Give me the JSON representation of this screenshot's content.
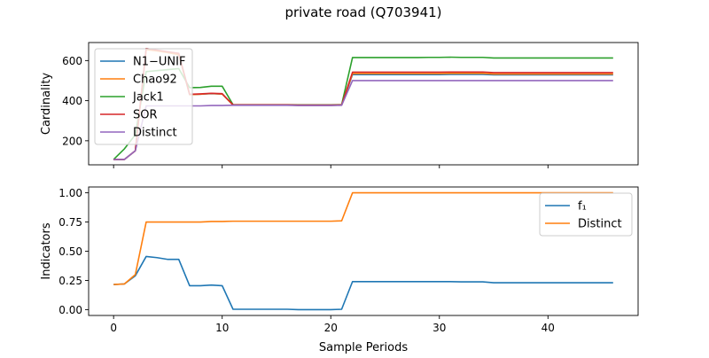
{
  "figure": {
    "title": "private road (Q703941)",
    "xlabel": "Sample Periods"
  },
  "chart_data": [
    {
      "type": "line",
      "ylabel": "Cardinality",
      "xlim": [
        -2.3,
        48.3
      ],
      "ylim": [
        80,
        690
      ],
      "xticks": [
        0,
        10,
        20,
        30,
        40
      ],
      "yticks": [
        200,
        400,
        600
      ],
      "legend_position": "upper-left",
      "grid": false,
      "series": [
        {
          "name": "N1−UNIF",
          "color": "#1f77b4",
          "x": [
            0,
            1,
            2,
            3,
            4,
            5,
            6,
            7,
            8,
            9,
            10,
            11,
            12,
            13,
            14,
            15,
            16,
            17,
            18,
            19,
            20,
            21,
            22,
            23,
            24,
            25,
            26,
            27,
            28,
            29,
            30,
            31,
            32,
            33,
            34,
            35,
            36,
            37,
            38,
            39,
            40,
            41,
            42,
            43,
            44,
            45,
            46
          ],
          "y": [
            107,
            107,
            150,
            660,
            650,
            640,
            630,
            430,
            432,
            435,
            433,
            378,
            378,
            378,
            378,
            378,
            378,
            377,
            377,
            377,
            377,
            378,
            530,
            530,
            530,
            530,
            530,
            530,
            530,
            530,
            530,
            531,
            531,
            531,
            531,
            529,
            529,
            529,
            529,
            529,
            529,
            529,
            529,
            529,
            529,
            529,
            529
          ]
        },
        {
          "name": "Chao92",
          "color": "#ff7f0e",
          "x": [
            0,
            1,
            2,
            3,
            4,
            5,
            6,
            7,
            8,
            9,
            10,
            11,
            12,
            13,
            14,
            15,
            16,
            17,
            18,
            19,
            20,
            21,
            22,
            23,
            24,
            25,
            26,
            27,
            28,
            29,
            30,
            31,
            32,
            33,
            34,
            35,
            36,
            37,
            38,
            39,
            40,
            41,
            42,
            43,
            44,
            45,
            46
          ],
          "y": [
            107,
            107,
            150,
            655,
            648,
            640,
            630,
            430,
            432,
            436,
            433,
            378,
            378,
            378,
            378,
            378,
            378,
            377,
            377,
            377,
            377,
            378,
            535,
            535,
            535,
            535,
            535,
            535,
            535,
            535,
            535,
            536,
            536,
            536,
            536,
            533,
            533,
            533,
            533,
            533,
            533,
            533,
            533,
            533,
            533,
            533,
            533
          ]
        },
        {
          "name": "Jack1",
          "color": "#2ca02c",
          "x": [
            0,
            1,
            2,
            3,
            4,
            5,
            6,
            7,
            8,
            9,
            10,
            11,
            12,
            13,
            14,
            15,
            16,
            17,
            18,
            19,
            20,
            21,
            22,
            23,
            24,
            25,
            26,
            27,
            28,
            29,
            30,
            31,
            32,
            33,
            34,
            35,
            36,
            37,
            38,
            39,
            40,
            41,
            42,
            43,
            44,
            45,
            46
          ],
          "y": [
            107,
            160,
            230,
            545,
            550,
            555,
            560,
            465,
            466,
            472,
            472,
            380,
            380,
            380,
            380,
            380,
            380,
            379,
            379,
            379,
            379,
            380,
            615,
            615,
            615,
            615,
            615,
            615,
            615,
            616,
            616,
            617,
            616,
            616,
            616,
            613,
            613,
            613,
            613,
            613,
            613,
            613,
            613,
            613,
            613,
            613,
            613
          ]
        },
        {
          "name": "SOR",
          "color": "#d62728",
          "x": [
            0,
            1,
            2,
            3,
            4,
            5,
            6,
            7,
            8,
            9,
            10,
            11,
            12,
            13,
            14,
            15,
            16,
            17,
            18,
            19,
            20,
            21,
            22,
            23,
            24,
            25,
            26,
            27,
            28,
            29,
            30,
            31,
            32,
            33,
            34,
            35,
            36,
            37,
            38,
            39,
            40,
            41,
            42,
            43,
            44,
            45,
            46
          ],
          "y": [
            107,
            107,
            150,
            660,
            652,
            644,
            636,
            432,
            434,
            437,
            435,
            379,
            379,
            379,
            379,
            379,
            379,
            378,
            378,
            378,
            378,
            379,
            542,
            542,
            542,
            542,
            542,
            542,
            542,
            542,
            542,
            543,
            543,
            543,
            543,
            540,
            540,
            540,
            540,
            540,
            540,
            540,
            540,
            540,
            540,
            540,
            540
          ]
        },
        {
          "name": "Distinct",
          "color": "#9467bd",
          "x": [
            0,
            1,
            2,
            3,
            4,
            5,
            6,
            7,
            8,
            9,
            10,
            11,
            12,
            13,
            14,
            15,
            16,
            17,
            18,
            19,
            20,
            21,
            22,
            23,
            24,
            25,
            26,
            27,
            28,
            29,
            30,
            31,
            32,
            33,
            34,
            35,
            36,
            37,
            38,
            39,
            40,
            41,
            42,
            43,
            44,
            45,
            46
          ],
          "y": [
            107,
            107,
            150,
            374,
            374,
            374,
            374,
            374,
            374,
            376,
            376,
            377,
            377,
            377,
            377,
            377,
            377,
            376,
            376,
            376,
            376,
            377,
            500,
            500,
            500,
            500,
            500,
            500,
            500,
            500,
            500,
            500,
            500,
            500,
            500,
            500,
            500,
            500,
            500,
            500,
            500,
            500,
            500,
            500,
            500,
            500,
            500
          ]
        }
      ]
    },
    {
      "type": "line",
      "ylabel": "Indicators",
      "xlim": [
        -2.3,
        48.3
      ],
      "ylim": [
        -0.05,
        1.05
      ],
      "xticks": [
        0,
        10,
        20,
        30,
        40
      ],
      "yticks": [
        0.0,
        0.25,
        0.5,
        0.75,
        1.0
      ],
      "yticklabels": [
        "0.00",
        "0.25",
        "0.50",
        "0.75",
        "1.00"
      ],
      "legend_position": "upper-right",
      "grid": false,
      "series": [
        {
          "name": "f₁",
          "color": "#1f77b4",
          "x": [
            0,
            1,
            2,
            3,
            4,
            5,
            6,
            7,
            8,
            9,
            10,
            11,
            12,
            13,
            14,
            15,
            16,
            17,
            18,
            19,
            20,
            21,
            22,
            23,
            24,
            25,
            26,
            27,
            28,
            29,
            30,
            31,
            32,
            33,
            34,
            35,
            36,
            37,
            38,
            39,
            40,
            41,
            42,
            43,
            44,
            45,
            46
          ],
          "y": [
            0.215,
            0.22,
            0.29,
            0.455,
            0.445,
            0.43,
            0.43,
            0.205,
            0.205,
            0.21,
            0.205,
            0.003,
            0.003,
            0.003,
            0.003,
            0.003,
            0.003,
            0.0,
            0.0,
            0.0,
            0.0,
            0.003,
            0.24,
            0.24,
            0.24,
            0.24,
            0.24,
            0.24,
            0.24,
            0.24,
            0.24,
            0.24,
            0.238,
            0.238,
            0.238,
            0.23,
            0.23,
            0.23,
            0.23,
            0.23,
            0.23,
            0.23,
            0.23,
            0.23,
            0.23,
            0.23,
            0.23
          ]
        },
        {
          "name": "Distinct",
          "color": "#ff7f0e",
          "x": [
            0,
            1,
            2,
            3,
            4,
            5,
            6,
            7,
            8,
            9,
            10,
            11,
            12,
            13,
            14,
            15,
            16,
            17,
            18,
            19,
            20,
            21,
            22,
            23,
            24,
            25,
            26,
            27,
            28,
            29,
            30,
            31,
            32,
            33,
            34,
            35,
            36,
            37,
            38,
            39,
            40,
            41,
            42,
            43,
            44,
            45,
            46
          ],
          "y": [
            0.215,
            0.22,
            0.3,
            0.75,
            0.75,
            0.75,
            0.75,
            0.75,
            0.75,
            0.755,
            0.755,
            0.757,
            0.757,
            0.757,
            0.757,
            0.757,
            0.757,
            0.757,
            0.757,
            0.757,
            0.757,
            0.76,
            1.0,
            1.0,
            1.0,
            1.0,
            1.0,
            1.0,
            1.0,
            1.0,
            1.0,
            1.0,
            1.0,
            1.0,
            1.0,
            1.0,
            1.0,
            1.0,
            1.0,
            1.0,
            1.0,
            1.0,
            1.0,
            1.0,
            1.0,
            1.0,
            1.0
          ]
        }
      ]
    }
  ]
}
